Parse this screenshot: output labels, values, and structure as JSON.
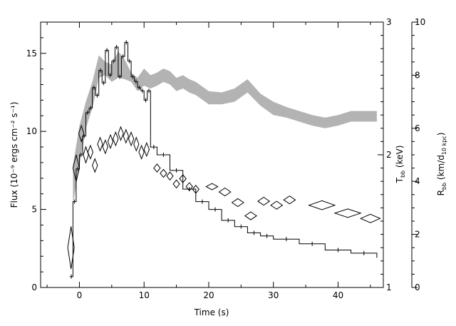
{
  "chart_data": {
    "type": "line",
    "title": "",
    "xlabel": "Time (s)",
    "ylabel_left": "Flux (10⁻⁹ ergs cm⁻² s⁻¹)",
    "ylabel_right_inner": "T_bb (keV)",
    "ylabel_right_outer": "R_bb (km/d_10 kpc)",
    "xlim": [
      -6,
      47
    ],
    "ylim_left": [
      0,
      17
    ],
    "ylim_temperature": [
      1,
      3
    ],
    "ylim_radius": [
      0,
      10
    ],
    "x_ticks": [
      "0",
      "10",
      "20",
      "30",
      "40"
    ],
    "y_left_ticks": [
      "0",
      "5",
      "10",
      "15"
    ],
    "y_temp_ticks": [
      "1",
      "2",
      "3"
    ],
    "y_radius_ticks": [
      "0",
      "2",
      "4",
      "6",
      "8",
      "10"
    ],
    "grid": false,
    "legend": "none",
    "series": [
      {
        "kind": "flux-histogram",
        "color": "#000000",
        "x": [
          -1.5,
          -1,
          -0.5,
          0,
          0.5,
          1,
          1.5,
          2,
          2.5,
          3,
          3.5,
          4,
          4.5,
          5,
          5.5,
          6,
          6.5,
          7,
          7.5,
          8,
          8.5,
          9,
          9.5,
          10,
          10.5,
          11,
          12,
          14,
          16,
          18,
          20,
          22,
          24,
          26,
          28,
          30,
          34,
          38,
          42,
          46
        ],
        "y": [
          0.7,
          5.5,
          7.6,
          8.5,
          9.7,
          11.2,
          11.5,
          12.8,
          12.3,
          13.9,
          13.1,
          15.2,
          13.6,
          14.5,
          15.4,
          13.5,
          14.8,
          15.7,
          14.5,
          13.5,
          13.2,
          12.8,
          12.6,
          12.0,
          12.6,
          9.0,
          8.5,
          7.5,
          6.3,
          5.5,
          5.0,
          4.3,
          3.9,
          3.5,
          3.3,
          3.1,
          2.8,
          2.4,
          2.2,
          1.9
        ]
      },
      {
        "kind": "temperature-band",
        "axis": "temperature",
        "color": "#b3b3b3",
        "x": [
          -1,
          0,
          1,
          2,
          3,
          4,
          5,
          6,
          7,
          8,
          9,
          10,
          11,
          12,
          13,
          14,
          15,
          16,
          17,
          18,
          20,
          22,
          24,
          26,
          28,
          30,
          32,
          34,
          36,
          38,
          40,
          42,
          44,
          46
        ],
        "low": [
          1.62,
          1.92,
          2.2,
          2.35,
          2.58,
          2.6,
          2.55,
          2.58,
          2.57,
          2.55,
          2.48,
          2.52,
          2.5,
          2.52,
          2.55,
          2.53,
          2.48,
          2.5,
          2.47,
          2.45,
          2.38,
          2.38,
          2.4,
          2.47,
          2.37,
          2.3,
          2.28,
          2.25,
          2.22,
          2.2,
          2.22,
          2.25,
          2.25,
          2.25
        ],
        "high": [
          1.92,
          2.22,
          2.4,
          2.55,
          2.75,
          2.7,
          2.68,
          2.78,
          2.72,
          2.62,
          2.58,
          2.65,
          2.6,
          2.62,
          2.65,
          2.63,
          2.58,
          2.6,
          2.57,
          2.55,
          2.48,
          2.47,
          2.5,
          2.57,
          2.46,
          2.4,
          2.36,
          2.33,
          2.3,
          2.28,
          2.3,
          2.33,
          2.33,
          2.33
        ]
      },
      {
        "kind": "radius-diamonds",
        "axis": "radius",
        "color": "#000000",
        "points": [
          {
            "x": -1.3,
            "y": 1.5,
            "dx": 0.5,
            "dy": 0.8
          },
          {
            "x": -0.5,
            "y": 4.5,
            "dx": 0.5,
            "dy": 0.5
          },
          {
            "x": 0.3,
            "y": 5.8,
            "dx": 0.4,
            "dy": 0.3
          },
          {
            "x": 1,
            "y": 5.0,
            "dx": 0.4,
            "dy": 0.3
          },
          {
            "x": 1.7,
            "y": 5.1,
            "dx": 0.4,
            "dy": 0.25
          },
          {
            "x": 2.4,
            "y": 4.6,
            "dx": 0.4,
            "dy": 0.25
          },
          {
            "x": 3.2,
            "y": 5.4,
            "dx": 0.4,
            "dy": 0.25
          },
          {
            "x": 4,
            "y": 5.3,
            "dx": 0.4,
            "dy": 0.25
          },
          {
            "x": 4.8,
            "y": 5.5,
            "dx": 0.4,
            "dy": 0.25
          },
          {
            "x": 5.6,
            "y": 5.6,
            "dx": 0.4,
            "dy": 0.25
          },
          {
            "x": 6.4,
            "y": 5.8,
            "dx": 0.4,
            "dy": 0.25
          },
          {
            "x": 7.2,
            "y": 5.7,
            "dx": 0.4,
            "dy": 0.25
          },
          {
            "x": 8,
            "y": 5.6,
            "dx": 0.4,
            "dy": 0.25
          },
          {
            "x": 8.8,
            "y": 5.4,
            "dx": 0.4,
            "dy": 0.25
          },
          {
            "x": 9.6,
            "y": 5.1,
            "dx": 0.4,
            "dy": 0.25
          },
          {
            "x": 10.4,
            "y": 5.2,
            "dx": 0.4,
            "dy": 0.25
          },
          {
            "x": 12,
            "y": 4.5,
            "dx": 0.5,
            "dy": 0.15
          },
          {
            "x": 13,
            "y": 4.3,
            "dx": 0.5,
            "dy": 0.15
          },
          {
            "x": 14,
            "y": 4.2,
            "dx": 0.5,
            "dy": 0.15
          },
          {
            "x": 15,
            "y": 3.9,
            "dx": 0.5,
            "dy": 0.15
          },
          {
            "x": 16,
            "y": 4.1,
            "dx": 0.5,
            "dy": 0.15
          },
          {
            "x": 17,
            "y": 3.8,
            "dx": 0.5,
            "dy": 0.15
          },
          {
            "x": 18,
            "y": 3.7,
            "dx": 0.5,
            "dy": 0.15
          },
          {
            "x": 20.5,
            "y": 3.8,
            "dx": 0.9,
            "dy": 0.12
          },
          {
            "x": 22.5,
            "y": 3.6,
            "dx": 0.9,
            "dy": 0.15
          },
          {
            "x": 24.5,
            "y": 3.2,
            "dx": 0.9,
            "dy": 0.15
          },
          {
            "x": 26.5,
            "y": 2.7,
            "dx": 0.9,
            "dy": 0.15
          },
          {
            "x": 28.5,
            "y": 3.25,
            "dx": 0.9,
            "dy": 0.15
          },
          {
            "x": 30.5,
            "y": 3.1,
            "dx": 0.9,
            "dy": 0.15
          },
          {
            "x": 32.5,
            "y": 3.3,
            "dx": 0.9,
            "dy": 0.15
          },
          {
            "x": 37.5,
            "y": 3.1,
            "dx": 2.0,
            "dy": 0.17
          },
          {
            "x": 41.5,
            "y": 2.8,
            "dx": 2.0,
            "dy": 0.16
          },
          {
            "x": 45,
            "y": 2.6,
            "dx": 1.5,
            "dy": 0.16
          }
        ]
      }
    ]
  }
}
